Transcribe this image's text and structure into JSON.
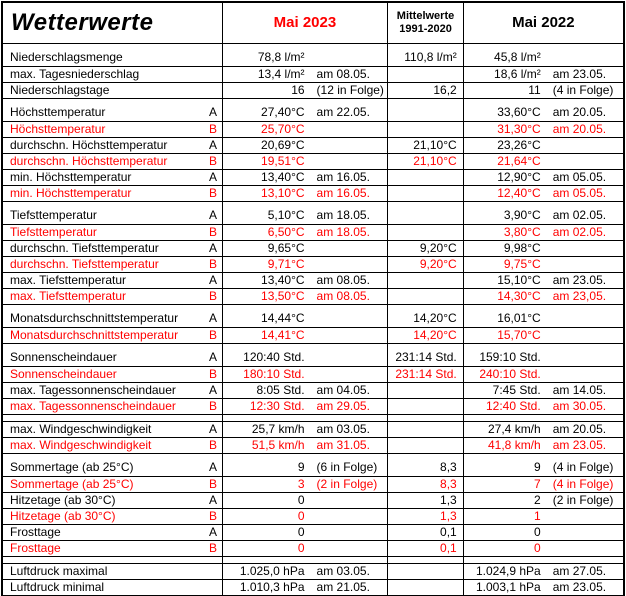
{
  "colors": {
    "accent_red": "#ff0000",
    "text": "#000000",
    "border": "#000000",
    "background": "#ffffff"
  },
  "header": {
    "title": "Wetterwerte",
    "col_mai2023": "Mai 2023",
    "col_mittelwerte_line1": "Mittelwerte",
    "col_mittelwerte_line2": "1991-2020",
    "col_mai2022": "Mai 2022"
  },
  "rows": [
    {
      "spacer": true
    },
    {
      "label": "Niederschlagsmenge",
      "marker": "",
      "red": false,
      "mai2023": {
        "value": "78,8 l/m²",
        "note": ""
      },
      "mittelwert": "110,8 l/m²",
      "mai2022": {
        "value": "45,8 l/m²",
        "note": ""
      }
    },
    {
      "label": "max. Tagesniederschlag",
      "marker": "",
      "red": false,
      "mai2023": {
        "value": "13,4 l/m²",
        "note": "am 08.05."
      },
      "mittelwert": "",
      "mai2022": {
        "value": "18,6 l/m²",
        "note": "am 23.05."
      }
    },
    {
      "label": "Niederschlagstage",
      "marker": "",
      "red": false,
      "mai2023": {
        "value": "16",
        "note": "(12 in Folge)"
      },
      "mittelwert": "16,2",
      "mai2022": {
        "value": "11",
        "note": "(4 in Folge)"
      }
    },
    {
      "spacer": true
    },
    {
      "label": "Höchsttemperatur",
      "marker": "A",
      "red": false,
      "mai2023": {
        "value": "27,40°C",
        "note": "am 22.05."
      },
      "mittelwert": "",
      "mai2022": {
        "value": "33,60°C",
        "note": "am 20.05."
      }
    },
    {
      "label": "Höchsttemperatur",
      "marker": "B",
      "red": true,
      "mai2023": {
        "value": "25,70°C",
        "note": ""
      },
      "mittelwert": "",
      "mai2022": {
        "value": "31,30°C",
        "note": "am 20.05."
      }
    },
    {
      "label": "durchschn. Höchsttemperatur",
      "marker": "A",
      "red": false,
      "mai2023": {
        "value": "20,69°C",
        "note": ""
      },
      "mittelwert": "21,10°C",
      "mai2022": {
        "value": "23,26°C",
        "note": ""
      }
    },
    {
      "label": "durchschn. Höchsttemperatur",
      "marker": "B",
      "red": true,
      "mai2023": {
        "value": "19,51°C",
        "note": ""
      },
      "mittelwert": "21,10°C",
      "mai2022": {
        "value": "21,64°C",
        "note": ""
      }
    },
    {
      "label": "min. Höchsttemperatur",
      "marker": "A",
      "red": false,
      "mai2023": {
        "value": "13,40°C",
        "note": "am 16.05."
      },
      "mittelwert": "",
      "mai2022": {
        "value": "12,90°C",
        "note": "am 05.05."
      }
    },
    {
      "label": "min. Höchsttemperatur",
      "marker": "B",
      "red": true,
      "mai2023": {
        "value": "13,10°C",
        "note": "am 16.05."
      },
      "mittelwert": "",
      "mai2022": {
        "value": "12,40°C",
        "note": "am 05.05."
      }
    },
    {
      "spacer": true
    },
    {
      "label": "Tiefsttemperatur",
      "marker": "A",
      "red": false,
      "mai2023": {
        "value": "5,10°C",
        "note": "am 18.05."
      },
      "mittelwert": "",
      "mai2022": {
        "value": "3,90°C",
        "note": "am 02.05."
      }
    },
    {
      "label": "Tiefsttemperatur",
      "marker": "B",
      "red": true,
      "mai2023": {
        "value": "6,50°C",
        "note": "am 18.05."
      },
      "mittelwert": "",
      "mai2022": {
        "value": "3,80°C",
        "note": "am 02.05."
      }
    },
    {
      "label": "durchschn. Tiefsttemperatur",
      "marker": "A",
      "red": false,
      "mai2023": {
        "value": "9,65°C",
        "note": ""
      },
      "mittelwert": "9,20°C",
      "mai2022": {
        "value": "9,98°C",
        "note": ""
      }
    },
    {
      "label": "durchschn. Tiefsttemperatur",
      "marker": "B",
      "red": true,
      "mai2023": {
        "value": "9,71°C",
        "note": ""
      },
      "mittelwert": "9,20°C",
      "mai2022": {
        "value": "9,75°C",
        "note": ""
      }
    },
    {
      "label": "max. Tiefsttemperatur",
      "marker": "A",
      "red": false,
      "mai2023": {
        "value": "13,40°C",
        "note": "am 08.05."
      },
      "mittelwert": "",
      "mai2022": {
        "value": "15,10°C",
        "note": "am 23.05."
      }
    },
    {
      "label": "max. Tiefsttemperatur",
      "marker": "B",
      "red": true,
      "mai2023": {
        "value": "13,50°C",
        "note": "am 08.05."
      },
      "mittelwert": "",
      "mai2022": {
        "value": "14,30°C",
        "note": "am 23,05."
      }
    },
    {
      "spacer": true
    },
    {
      "label": "Monatsdurchschnittstemperatur",
      "marker": "A",
      "red": false,
      "mai2023": {
        "value": "14,44°C",
        "note": ""
      },
      "mittelwert": "14,20°C",
      "mai2022": {
        "value": "16,01°C",
        "note": ""
      }
    },
    {
      "label": "Monatsdurchschnittstemperatur",
      "marker": "B",
      "red": true,
      "mai2023": {
        "value": "14,41°C",
        "note": ""
      },
      "mittelwert": "14,20°C",
      "mai2022": {
        "value": "15,70°C",
        "note": ""
      }
    },
    {
      "spacer": true
    },
    {
      "label": "Sonnenscheindauer",
      "marker": "A",
      "red": false,
      "mai2023": {
        "value": "120:40 Std.",
        "note": ""
      },
      "mittelwert": "231:14 Std.",
      "mai2022": {
        "value": "159:10 Std.",
        "note": ""
      }
    },
    {
      "label": "Sonnenscheindauer",
      "marker": "B",
      "red": true,
      "mai2023": {
        "value": "180:10 Std.",
        "note": ""
      },
      "mittelwert": "231:14 Std.",
      "mai2022": {
        "value": "240:10 Std.",
        "note": ""
      }
    },
    {
      "label": "max. Tagessonnenscheindauer",
      "marker": "A",
      "red": false,
      "mai2023": {
        "value": "8:05 Std.",
        "note": "am 04.05."
      },
      "mittelwert": "",
      "mai2022": {
        "value": "7:45 Std.",
        "note": "am 14.05."
      }
    },
    {
      "label": "max. Tagessonnenscheindauer",
      "marker": "B",
      "red": true,
      "mai2023": {
        "value": "12:30 Std.",
        "note": "am 29.05."
      },
      "mittelwert": "",
      "mai2022": {
        "value": "12:40 Std.",
        "note": "am 30.05."
      }
    },
    {
      "spacer": true
    },
    {
      "label": "max. Windgeschwindigkeit",
      "marker": "A",
      "red": false,
      "top_border": true,
      "mai2023": {
        "value": "25,7 km/h",
        "note": "am 03.05."
      },
      "mittelwert": "",
      "mai2022": {
        "value": "27,4 km/h",
        "note": "am 20.05."
      }
    },
    {
      "label": "max. Windgeschwindigkeit",
      "marker": "B",
      "red": true,
      "mai2023": {
        "value": "51,5 km/h",
        "note": "am 31.05."
      },
      "mittelwert": "",
      "mai2022": {
        "value": "41,8 km/h",
        "note": "am 23.05."
      }
    },
    {
      "spacer": true
    },
    {
      "label": "Sommertage (ab 25°C)",
      "marker": "A",
      "red": false,
      "mai2023": {
        "value": "9",
        "note": "(6 in Folge)"
      },
      "mittelwert": "8,3",
      "mai2022": {
        "value": "9",
        "note": "(4 in Folge)"
      }
    },
    {
      "label": "Sommertage (ab 25°C)",
      "marker": "B",
      "red": true,
      "mai2023": {
        "value": "3",
        "note": "(2 in Folge)"
      },
      "mittelwert": "8,3",
      "mai2022": {
        "value": "7",
        "note": "(4 in Folge)"
      }
    },
    {
      "label": "Hitzetage (ab 30°C)",
      "marker": "A",
      "red": false,
      "mai2023": {
        "value": "0",
        "note": ""
      },
      "mittelwert": "1,3",
      "mai2022": {
        "value": "2",
        "note": "(2 in Folge)"
      }
    },
    {
      "label": "Hitzetage (ab 30°C)",
      "marker": "B",
      "red": true,
      "mai2023": {
        "value": "0",
        "note": ""
      },
      "mittelwert": "1,3",
      "mai2022": {
        "value": "1",
        "note": ""
      }
    },
    {
      "label": "Frosttage",
      "marker": "A",
      "red": false,
      "mai2023": {
        "value": "0",
        "note": ""
      },
      "mittelwert": "0,1",
      "mai2022": {
        "value": "0",
        "note": ""
      }
    },
    {
      "label": "Frosttage",
      "marker": "B",
      "red": true,
      "mai2023": {
        "value": "0",
        "note": ""
      },
      "mittelwert": "0,1",
      "mai2022": {
        "value": "0",
        "note": ""
      }
    },
    {
      "spacer": true
    },
    {
      "label": "Luftdruck maximal",
      "marker": "",
      "red": false,
      "top_border": true,
      "mai2023": {
        "value": "1.025,0 hPa",
        "note": "am 03.05."
      },
      "mittelwert": "",
      "mai2022": {
        "value": "1.024,9 hPa",
        "note": "am 27.05."
      }
    },
    {
      "label": "Luftdruck minimal",
      "marker": "",
      "red": false,
      "mai2023": {
        "value": "1.010,3 hPa",
        "note": "am 21.05."
      },
      "mittelwert": "",
      "mai2022": {
        "value": "1.003,1 hPa",
        "note": "am 23.05."
      }
    },
    {
      "spacer": true
    }
  ]
}
